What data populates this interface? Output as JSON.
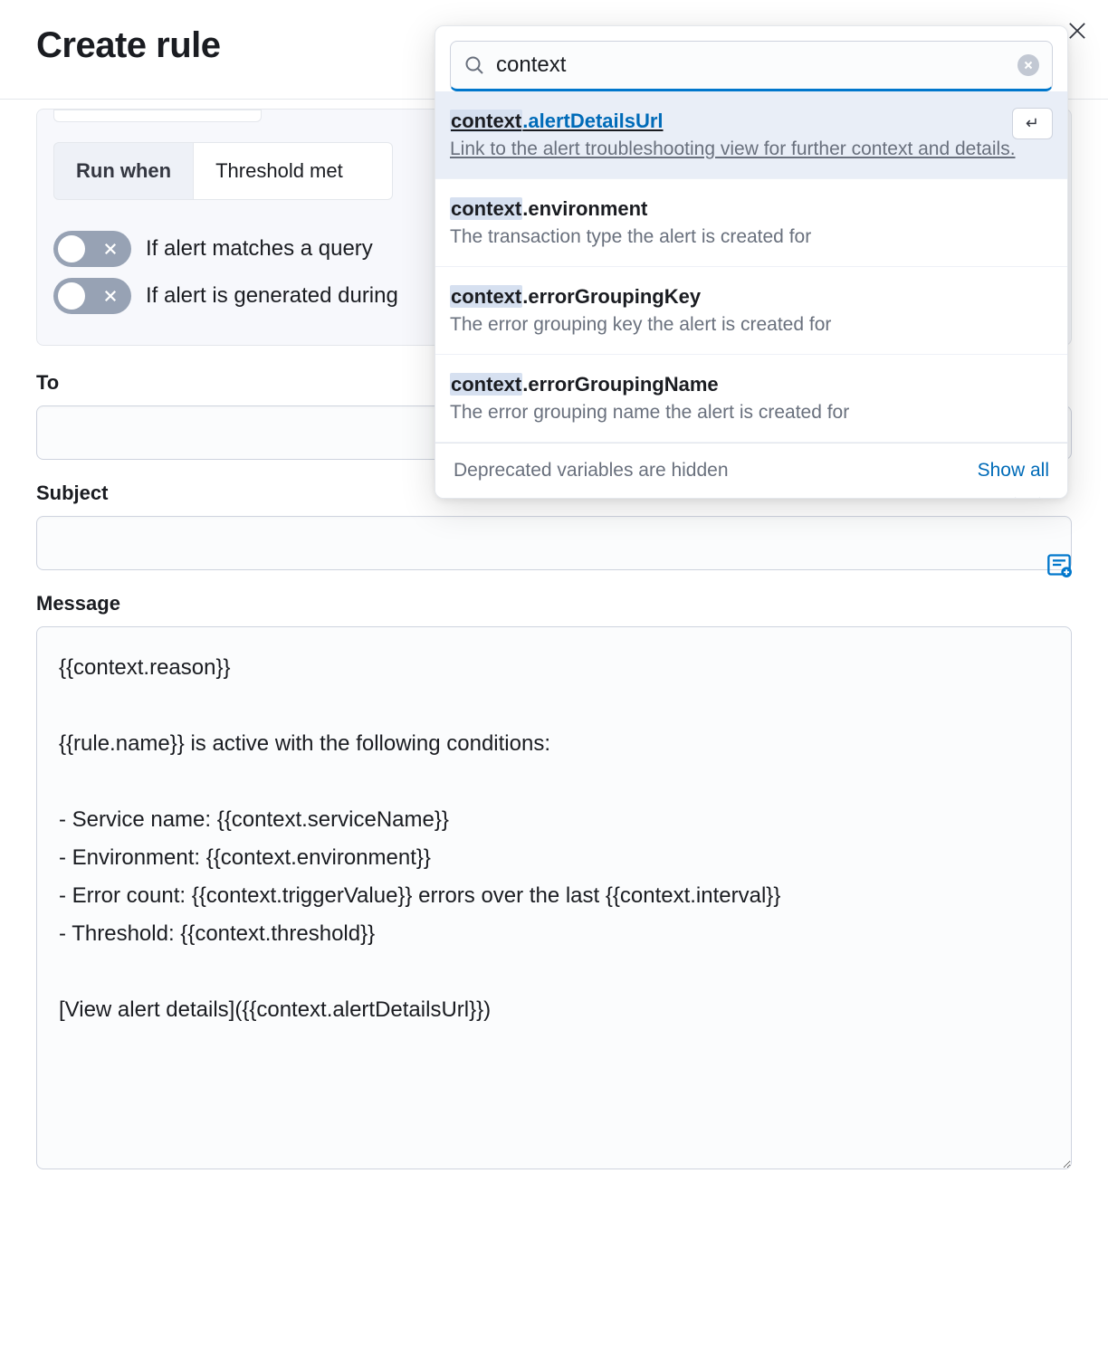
{
  "header": {
    "title": "Create rule"
  },
  "run_when": {
    "label": "Run when",
    "value": "Threshold met"
  },
  "toggles": {
    "query_match": {
      "label": "If alert matches a query",
      "on": false
    },
    "generated_during": {
      "label": "If alert is generated during",
      "on": false
    }
  },
  "fields": {
    "to": {
      "label": "To",
      "value": ""
    },
    "subject": {
      "label": "Subject",
      "value": ""
    },
    "message": {
      "label": "Message",
      "value": "{{context.reason}}\n\n{{rule.name}} is active with the following conditions:\n\n- Service name: {{context.serviceName}}\n- Environment: {{context.environment}}\n- Error count: {{context.triggerValue}} errors over the last {{context.interval}}\n- Threshold: {{context.threshold}}\n\n[View alert details]({{context.alertDetailsUrl}})"
    }
  },
  "popover": {
    "search_value": "context",
    "options": [
      {
        "prefix": "context",
        "suffix": ".alertDetailsUrl",
        "desc": "Link to the alert troubleshooting view for further context and details.",
        "selected": true
      },
      {
        "prefix": "context",
        "suffix": ".environment",
        "desc": "The transaction type the alert is created for",
        "selected": false
      },
      {
        "prefix": "context",
        "suffix": ".errorGroupingKey",
        "desc": "The error grouping key the alert is created for",
        "selected": false
      },
      {
        "prefix": "context",
        "suffix": ".errorGroupingName",
        "desc": "The error grouping name the alert is created for",
        "selected": false
      }
    ],
    "footer_left": "Deprecated variables are hidden",
    "footer_right": "Show all",
    "enter_glyph": "↵"
  },
  "colors": {
    "accent": "#07c",
    "link": "#006bb8",
    "muted": "#69707d",
    "border": "#e4e7ec"
  }
}
